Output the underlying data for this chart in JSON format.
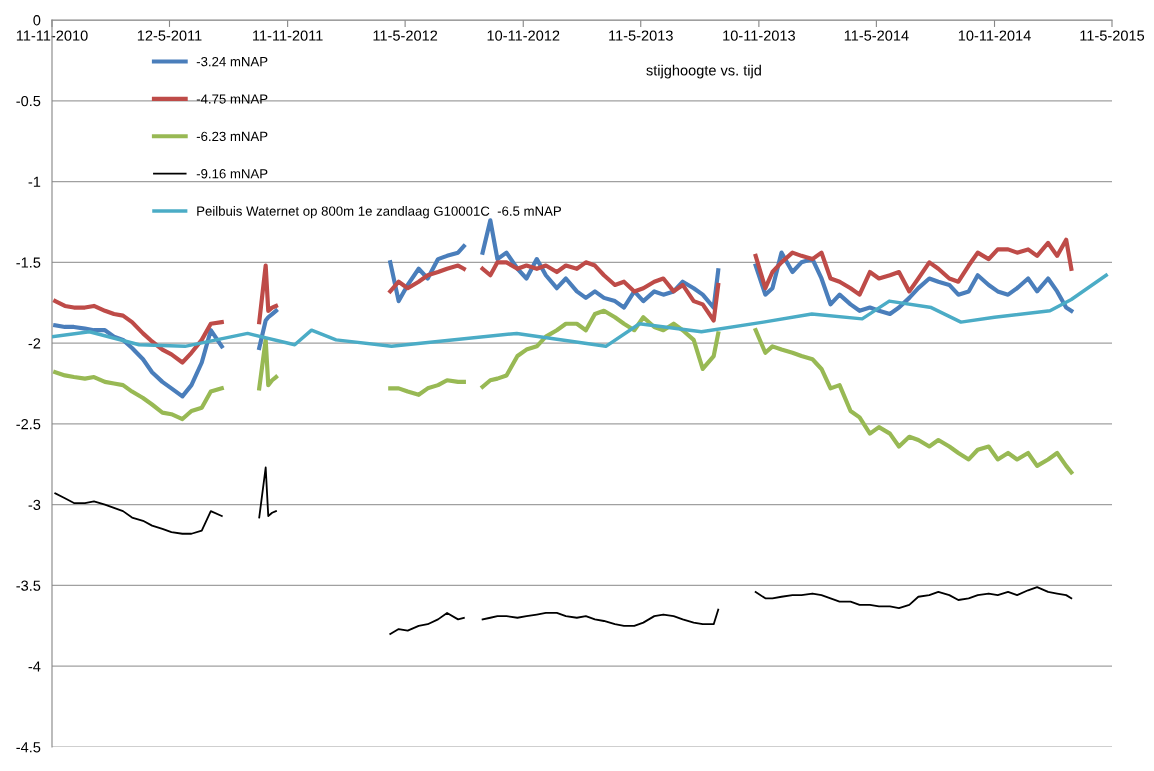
{
  "chart_data": {
    "type": "line",
    "title": "stijghoogte vs. tijd",
    "x": [
      "2010-11-16",
      "2010-12-01",
      "2010-12-15",
      "2011-01-01",
      "2011-01-15",
      "2011-02-01",
      "2011-02-15",
      "2011-03-01",
      "2011-03-15",
      "2011-04-01",
      "2011-04-15",
      "2011-05-01",
      "2011-05-15",
      "2011-06-01",
      "2011-06-15",
      "2011-07-01",
      "2011-07-15",
      "2011-08-01",
      "2011-09-01",
      "2011-09-28",
      "2011-10-08",
      "2011-10-12",
      "2011-10-18",
      "2011-10-24",
      "2012-01-01",
      "2012-04-18",
      "2012-05-01",
      "2012-05-15",
      "2012-06-01",
      "2012-06-15",
      "2012-07-01",
      "2012-07-15",
      "2012-08-01",
      "2012-08-10",
      "2012-08-25",
      "2012-09-08",
      "2012-09-20",
      "2012-10-01",
      "2012-10-15",
      "2012-11-01",
      "2012-11-15",
      "2012-12-01",
      "2012-12-15",
      "2013-01-01",
      "2013-01-15",
      "2013-02-01",
      "2013-02-15",
      "2013-03-01",
      "2013-03-15",
      "2013-04-01",
      "2013-04-15",
      "2013-05-01",
      "2013-05-15",
      "2013-06-01",
      "2013-06-15",
      "2013-07-01",
      "2013-07-15",
      "2013-08-01",
      "2013-08-15",
      "2013-09-01",
      "2013-09-08",
      "2013-10-01",
      "2013-11-05",
      "2013-11-20",
      "2013-12-01",
      "2013-12-15",
      "2014-01-01",
      "2014-01-15",
      "2014-02-01",
      "2014-02-15",
      "2014-03-01",
      "2014-03-15",
      "2014-04-01",
      "2014-04-15",
      "2014-05-01",
      "2014-05-15",
      "2014-06-01",
      "2014-06-15",
      "2014-07-01",
      "2014-07-15",
      "2014-08-01",
      "2014-08-15",
      "2014-09-01",
      "2014-09-15",
      "2014-10-01",
      "2014-10-15",
      "2014-11-01",
      "2014-11-15",
      "2014-12-01",
      "2014-12-15",
      "2015-01-01",
      "2015-01-15",
      "2015-02-01",
      "2015-02-15",
      "2015-03-01",
      "2015-03-09"
    ],
    "series": [
      {
        "name": "-3.24 mNAP",
        "color": "#4a7ebb",
        "values": [
          -1.89,
          -1.9,
          -1.9,
          -1.91,
          -1.92,
          -1.92,
          -1.96,
          -1.98,
          -2.03,
          -2.1,
          -2.18,
          -2.24,
          -2.28,
          -2.33,
          -2.26,
          -2.12,
          -1.92,
          -2.02,
          null,
          -2.03,
          -1.86,
          -1.84,
          -1.82,
          -1.8,
          null,
          -1.5,
          -1.74,
          -1.64,
          -1.54,
          -1.6,
          -1.48,
          -1.46,
          -1.44,
          -1.4,
          null,
          -1.44,
          -1.24,
          -1.48,
          -1.44,
          -1.54,
          -1.6,
          -1.48,
          -1.58,
          -1.66,
          -1.6,
          -1.68,
          -1.72,
          -1.68,
          -1.72,
          -1.74,
          -1.78,
          -1.68,
          -1.74,
          -1.68,
          -1.7,
          -1.68,
          -1.62,
          -1.66,
          -1.7,
          -1.78,
          -1.55,
          null,
          -1.52,
          -1.7,
          -1.66,
          -1.44,
          -1.56,
          -1.5,
          -1.48,
          -1.6,
          -1.76,
          -1.7,
          -1.76,
          -1.8,
          -1.78,
          -1.8,
          -1.82,
          -1.78,
          -1.72,
          -1.66,
          -1.6,
          -1.62,
          -1.64,
          -1.7,
          -1.68,
          -1.58,
          -1.64,
          -1.68,
          -1.7,
          -1.66,
          -1.6,
          -1.68,
          -1.6,
          -1.68,
          -1.78,
          -1.8
        ]
      },
      {
        "name": "-4.75 mNAP",
        "color": "#be4b48",
        "values": [
          -1.74,
          -1.77,
          -1.78,
          -1.78,
          -1.77,
          -1.8,
          -1.82,
          -1.83,
          -1.87,
          -1.94,
          -1.99,
          -2.04,
          -2.07,
          -2.12,
          -2.06,
          -1.98,
          -1.88,
          -1.87,
          null,
          -1.87,
          -1.52,
          -1.8,
          -1.78,
          -1.77,
          null,
          -1.68,
          -1.62,
          -1.66,
          -1.62,
          -1.58,
          -1.56,
          -1.54,
          -1.52,
          -1.54,
          null,
          -1.54,
          -1.58,
          -1.5,
          -1.5,
          -1.54,
          -1.52,
          -1.54,
          -1.52,
          -1.56,
          -1.52,
          -1.54,
          -1.5,
          -1.52,
          -1.58,
          -1.64,
          -1.62,
          -1.68,
          -1.66,
          -1.62,
          -1.6,
          -1.68,
          -1.64,
          -1.74,
          -1.76,
          -1.86,
          -1.64,
          null,
          -1.46,
          -1.66,
          -1.56,
          -1.5,
          -1.44,
          -1.46,
          -1.48,
          -1.44,
          -1.6,
          -1.62,
          -1.66,
          -1.7,
          -1.56,
          -1.6,
          -1.58,
          -1.56,
          -1.68,
          -1.6,
          -1.5,
          -1.54,
          -1.6,
          -1.62,
          -1.52,
          -1.44,
          -1.48,
          -1.42,
          -1.42,
          -1.44,
          -1.42,
          -1.46,
          -1.38,
          -1.46,
          -1.36,
          -1.54
        ]
      },
      {
        "name": "-6.23 mNAP",
        "color": "#98b954",
        "values": [
          -2.18,
          -2.2,
          -2.21,
          -2.22,
          -2.21,
          -2.24,
          -2.25,
          -2.26,
          -2.3,
          -2.34,
          -2.38,
          -2.43,
          -2.44,
          -2.47,
          -2.42,
          -2.4,
          -2.3,
          -2.28,
          null,
          -2.28,
          -1.98,
          -2.26,
          -2.23,
          -2.21,
          null,
          -2.28,
          -2.28,
          -2.3,
          -2.32,
          -2.28,
          -2.26,
          -2.23,
          -2.24,
          -2.24,
          null,
          -2.27,
          -2.23,
          -2.22,
          -2.2,
          -2.08,
          -2.04,
          -2.02,
          -1.96,
          -1.92,
          -1.88,
          -1.88,
          -1.92,
          -1.82,
          -1.8,
          -1.84,
          -1.88,
          -1.92,
          -1.84,
          -1.9,
          -1.92,
          -1.88,
          -1.92,
          -1.98,
          -2.16,
          -2.08,
          -1.94,
          null,
          -1.92,
          -2.06,
          -2.02,
          -2.04,
          -2.06,
          -2.08,
          -2.1,
          -2.16,
          -2.28,
          -2.26,
          -2.42,
          -2.46,
          -2.56,
          -2.52,
          -2.56,
          -2.64,
          -2.58,
          -2.6,
          -2.64,
          -2.6,
          -2.64,
          -2.68,
          -2.72,
          -2.66,
          -2.64,
          -2.72,
          -2.68,
          -2.72,
          -2.68,
          -2.76,
          -2.72,
          -2.68,
          -2.76,
          -2.8
        ]
      },
      {
        "name": "-9.16 mNAP",
        "color": "#000000",
        "values": [
          -2.93,
          -2.96,
          -2.99,
          -2.99,
          -2.98,
          -3.0,
          -3.02,
          -3.04,
          -3.08,
          -3.1,
          -3.13,
          -3.15,
          -3.17,
          -3.18,
          -3.18,
          -3.16,
          -3.04,
          -3.07,
          null,
          -3.08,
          -2.77,
          -3.07,
          -3.05,
          -3.04,
          null,
          -3.8,
          -3.77,
          -3.78,
          -3.75,
          -3.74,
          -3.71,
          -3.67,
          -3.71,
          -3.7,
          null,
          -3.71,
          -3.7,
          -3.69,
          -3.69,
          -3.7,
          -3.69,
          -3.68,
          -3.67,
          -3.67,
          -3.69,
          -3.7,
          -3.69,
          -3.71,
          -3.72,
          -3.74,
          -3.75,
          -3.75,
          -3.73,
          -3.69,
          -3.68,
          -3.69,
          -3.71,
          -3.73,
          -3.74,
          -3.74,
          -3.65,
          null,
          -3.54,
          -3.58,
          -3.58,
          -3.57,
          -3.56,
          -3.56,
          -3.55,
          -3.56,
          -3.58,
          -3.6,
          -3.6,
          -3.62,
          -3.62,
          -3.63,
          -3.63,
          -3.64,
          -3.62,
          -3.57,
          -3.56,
          -3.54,
          -3.56,
          -3.59,
          -3.58,
          -3.56,
          -3.55,
          -3.56,
          -3.54,
          -3.56,
          -3.53,
          -3.51,
          -3.54,
          -3.55,
          -3.56,
          -3.58
        ]
      },
      {
        "name": "Peilbuis Waternet op 800m 1e zandlaag G10001C  -6.5 mNAP",
        "color": "#4bacc6",
        "x": [
          "2010-11-11",
          "2011-01-08",
          "2011-03-26",
          "2011-06-05",
          "2011-09-10",
          "2011-11-22",
          "2011-12-18",
          "2012-01-25",
          "2012-04-20",
          "2012-10-31",
          "2013-03-18",
          "2013-05-09",
          "2013-08-13",
          "2013-11-17",
          "2014-01-31",
          "2014-04-19",
          "2014-05-31",
          "2014-08-04",
          "2014-09-19",
          "2014-11-10",
          "2015-02-04",
          "2015-03-09",
          "2015-05-02"
        ],
        "values": [
          -1.96,
          -1.93,
          -2.01,
          -2.02,
          -1.94,
          -2.01,
          -1.92,
          -1.98,
          -2.02,
          -1.94,
          -2.02,
          -1.88,
          -1.93,
          -1.87,
          -1.82,
          -1.85,
          -1.74,
          -1.78,
          -1.87,
          -1.84,
          -1.8,
          -1.73,
          -1.58
        ]
      }
    ],
    "xlim": [
      "2010-11-11",
      "2015-05-11"
    ],
    "xticks": [
      {
        "value": "2010-11-11",
        "label": "11-11-2010"
      },
      {
        "value": "2011-05-12",
        "label": "12-5-2011"
      },
      {
        "value": "2011-11-11",
        "label": "11-11-2011"
      },
      {
        "value": "2012-05-11",
        "label": "11-5-2012"
      },
      {
        "value": "2012-11-10",
        "label": "10-11-2012"
      },
      {
        "value": "2013-05-11",
        "label": "11-5-2013"
      },
      {
        "value": "2013-11-10",
        "label": "10-11-2013"
      },
      {
        "value": "2014-05-11",
        "label": "11-5-2014"
      },
      {
        "value": "2014-11-10",
        "label": "10-11-2014"
      },
      {
        "value": "2015-05-11",
        "label": "11-5-2015"
      }
    ],
    "ylim": [
      -4.5,
      0
    ],
    "yticks": [
      0,
      -0.5,
      -1,
      -1.5,
      -2,
      -2.5,
      -3,
      -3.5,
      -4,
      -4.5
    ],
    "grid": "y",
    "legend": "top left"
  }
}
